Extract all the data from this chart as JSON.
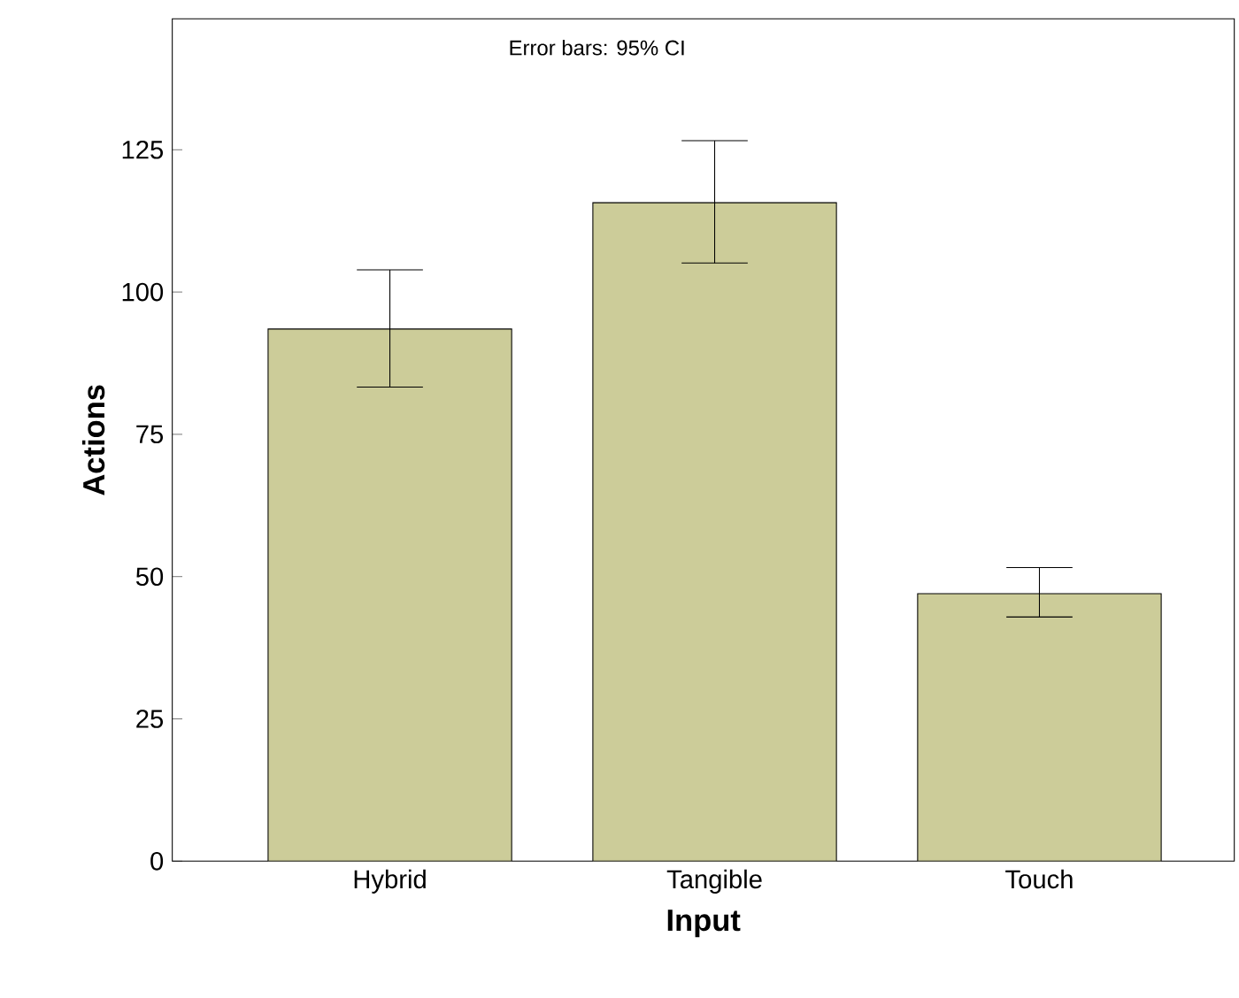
{
  "chart_data": {
    "type": "bar",
    "xlabel": "Input",
    "ylabel": "Actions",
    "categories": [
      "Hybrid",
      "Tangible",
      "Touch"
    ],
    "values": [
      93.5,
      115.7,
      47.0
    ],
    "errors": [
      [
        83.3,
        103.9
      ],
      [
        105.1,
        126.6
      ],
      [
        42.9,
        51.6
      ]
    ],
    "color": "#cccc99",
    "ylim": [
      0,
      148
    ],
    "yticks": [
      0,
      25,
      50,
      75,
      100,
      125
    ],
    "annotations": [
      "Error bars: 95% CI"
    ],
    "grid": false
  }
}
